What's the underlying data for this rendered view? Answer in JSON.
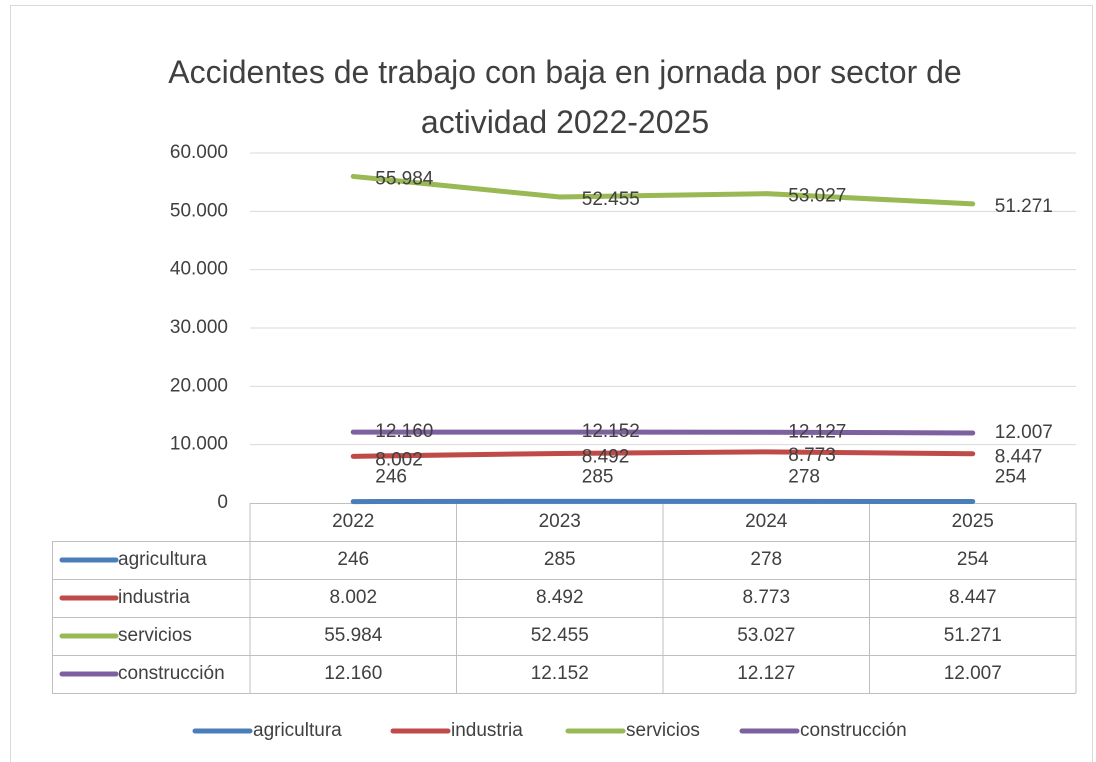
{
  "chart_data": {
    "type": "line",
    "title": "Accidentes de trabajo con baja en jornada por sector de actividad 2022-2025",
    "categories": [
      "2022",
      "2023",
      "2024",
      "2025"
    ],
    "series": [
      {
        "name": "agricultura",
        "color": "#4a7ebb",
        "values": [
          246,
          285,
          278,
          254
        ]
      },
      {
        "name": "industria",
        "color": "#be4b48",
        "values": [
          8002,
          8492,
          8773,
          8447
        ],
        "value_labels": [
          "8.002",
          "8.492",
          "8.773",
          "8.447"
        ]
      },
      {
        "name": "servicios",
        "color": "#98b954",
        "values": [
          55984,
          52455,
          53027,
          51271
        ],
        "value_labels": [
          "55.984",
          "52.455",
          "53.027",
          "51.271"
        ]
      },
      {
        "name": "construcción",
        "color": "#7d60a0",
        "values": [
          12160,
          12152,
          12127,
          12007
        ],
        "value_labels": [
          "12.160",
          "12.152",
          "12.127",
          "12.007"
        ]
      }
    ],
    "ylim": [
      0,
      60000
    ],
    "yticks": [
      0,
      {
        "value": 10000,
        "label": "10.000"
      },
      {
        "value": 20000,
        "label": "20.000"
      },
      {
        "value": 30000,
        "label": "30.000"
      },
      {
        "value": 40000,
        "label": "40.000"
      },
      {
        "value": 50000,
        "label": "50.000"
      },
      {
        "value": 60000,
        "label": "60.000"
      }
    ],
    "grid": true,
    "data_table": true,
    "legend": "bottom"
  }
}
